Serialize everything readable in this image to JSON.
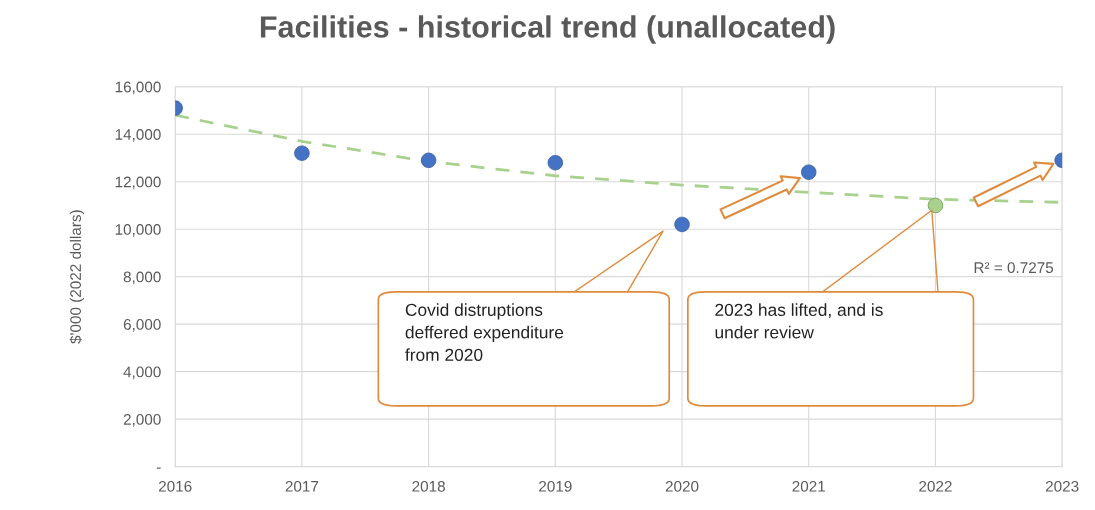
{
  "chart_data": {
    "type": "scatter",
    "title": "Facilities - historical trend (unallocated)",
    "ylabel": "$'000 (2022 dollars)",
    "x": [
      2016,
      2017,
      2018,
      2019,
      2020,
      2021,
      2022,
      2023
    ],
    "series": [
      {
        "colors": [
          "#4472c4",
          "#4472c4",
          "#4472c4",
          "#4472c4",
          "#4472c4",
          "#4472c4",
          "#a9d18e",
          "#4472c4"
        ],
        "values": [
          15100,
          13200,
          12900,
          12800,
          10200,
          12400,
          11000,
          12900
        ],
        "marker": "circle"
      },
      {
        "type": "line",
        "color": "#a9d18e",
        "line_style": "dashed",
        "marker": "none",
        "x": [
          2016,
          2017,
          2018,
          2019,
          2020,
          2021,
          2022,
          2023
        ],
        "values": [
          14800,
          13700,
          12850,
          12250,
          11860,
          11550,
          11260,
          11130
        ]
      }
    ],
    "annotations": [
      "Covid distruptions\ndeffered expenditure\nfrom 2020",
      "2023 has lifted, and is\nunder review",
      "R² = 0.7275"
    ],
    "xlim": [
      2016,
      2023
    ],
    "xticks": [
      2016,
      2017,
      2018,
      2019,
      2020,
      2021,
      2022,
      2023
    ],
    "ylim": [
      0,
      16000
    ],
    "yticks": [
      {
        "value": 0,
        "label": "-"
      },
      {
        "value": 2000,
        "label": "2,000"
      },
      {
        "value": 4000,
        "label": "4,000"
      },
      {
        "value": 6000,
        "label": "6,000"
      },
      {
        "value": 8000,
        "label": "8,000"
      },
      {
        "value": 10000,
        "label": "10,000"
      },
      {
        "value": 12000,
        "label": "12,000"
      },
      {
        "value": 14000,
        "label": "14,000"
      },
      {
        "value": 16000,
        "label": "16,000"
      }
    ],
    "grid": true,
    "legend": false
  }
}
